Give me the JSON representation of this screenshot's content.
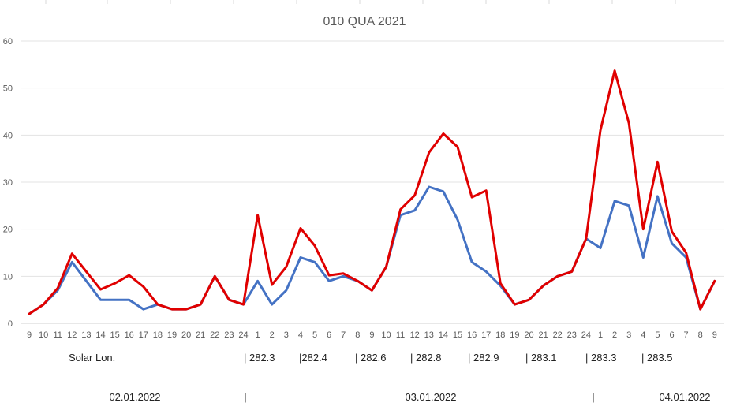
{
  "chart_data": {
    "type": "line",
    "title": "010 QUA 2021",
    "xlabel": "",
    "ylabel": "",
    "ylim": [
      0,
      60
    ],
    "yticks": [
      0,
      10,
      20,
      30,
      40,
      50,
      60
    ],
    "grid": true,
    "legend": "none",
    "categories": [
      "9",
      "10",
      "11",
      "12",
      "13",
      "14",
      "15",
      "16",
      "17",
      "18",
      "19",
      "20",
      "21",
      "22",
      "23",
      "24",
      "1",
      "2",
      "3",
      "4",
      "5",
      "6",
      "7",
      "8",
      "9",
      "10",
      "11",
      "12",
      "13",
      "14",
      "15",
      "16",
      "17",
      "18",
      "19",
      "20",
      "21",
      "22",
      "23",
      "24",
      "1",
      "2",
      "3",
      "4",
      "5",
      "6",
      "7",
      "8",
      "9"
    ],
    "series": [
      {
        "color": "#4472C4",
        "values": [
          2,
          4,
          7,
          13,
          9,
          5,
          5,
          5,
          3,
          4,
          3,
          3,
          4,
          10,
          5,
          4,
          9,
          4,
          7,
          14,
          13,
          9,
          10,
          9,
          7,
          12,
          23,
          24,
          29,
          28,
          22,
          13,
          11,
          8,
          4,
          5,
          8,
          10,
          11,
          18,
          16,
          26,
          25,
          14,
          27,
          17,
          14,
          3,
          9
        ]
      },
      {
        "color": "#E00000",
        "values": [
          2,
          4,
          7.5,
          14.8,
          11,
          7.2,
          8.5,
          10.2,
          7.8,
          4,
          3,
          3,
          4,
          10,
          5,
          4,
          23,
          8.2,
          12,
          20.2,
          16.5,
          10.2,
          10.6,
          9,
          7,
          12,
          24.2,
          27.2,
          36.3,
          40.3,
          37.5,
          26.8,
          28.2,
          8.5,
          4,
          5,
          8,
          10,
          11,
          18,
          41,
          53.7,
          42.5,
          20,
          34.3,
          19.5,
          15,
          3,
          9
        ]
      }
    ],
    "annotations": {
      "solar_label": "Solar Lon.",
      "solar_values": [
        "| 282.3",
        "|282.4",
        "| 282.6",
        "| 282.8",
        "| 282.9",
        "| 283.1",
        "| 283.3",
        "| 283.5"
      ],
      "date_separator": "|",
      "dates": [
        "02.01.2022",
        "03.01.2022",
        "04.01.2022"
      ]
    }
  }
}
